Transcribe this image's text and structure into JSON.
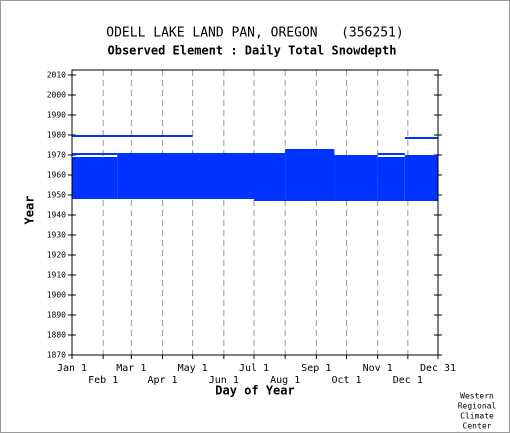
{
  "chart_data": {
    "type": "range",
    "title": "ODELL LAKE LAND PAN, OREGON   (356251)",
    "subtitle": "Observed Element : Daily Total Snowdepth",
    "xlabel": "Day of Year",
    "ylabel": "Year",
    "credit": [
      "Western",
      "Regional",
      "Climate",
      "Center"
    ],
    "color": "#0033ff",
    "xlim": [
      1,
      365
    ],
    "ylim": [
      1870,
      2012.5
    ],
    "xticks": [
      {
        "value": 1,
        "label": "Jan 1"
      },
      {
        "value": 32,
        "label": "Feb 1"
      },
      {
        "value": 60,
        "label": "Mar 1"
      },
      {
        "value": 91,
        "label": "Apr 1"
      },
      {
        "value": 121,
        "label": "May 1"
      },
      {
        "value": 152,
        "label": "Jun 1"
      },
      {
        "value": 182,
        "label": "Jul 1"
      },
      {
        "value": 213,
        "label": "Aug 1"
      },
      {
        "value": 244,
        "label": "Sep 1"
      },
      {
        "value": 274,
        "label": "Oct 1"
      },
      {
        "value": 305,
        "label": "Nov 1"
      },
      {
        "value": 335,
        "label": "Dec 1"
      },
      {
        "value": 365,
        "label": "Dec 31"
      }
    ],
    "yticks": [
      1870,
      1880,
      1890,
      1900,
      1910,
      1920,
      1930,
      1940,
      1950,
      1960,
      1970,
      1980,
      1990,
      2000,
      2010
    ],
    "grid": true,
    "ranges": [
      {
        "start": 1,
        "end": 121,
        "from": 1979,
        "to": 1980
      },
      {
        "start": 1,
        "end": 46,
        "from": 1970,
        "to": 1971
      },
      {
        "start": 1,
        "end": 46,
        "from": 1948,
        "to": 1969
      },
      {
        "start": 46,
        "end": 182,
        "from": 1948,
        "to": 1971
      },
      {
        "start": 121,
        "end": 182,
        "from": 1970,
        "to": 1971
      },
      {
        "start": 182,
        "end": 213,
        "from": 1947,
        "to": 1971
      },
      {
        "start": 213,
        "end": 262,
        "from": 1947,
        "to": 1973
      },
      {
        "start": 262,
        "end": 305,
        "from": 1947,
        "to": 1970
      },
      {
        "start": 305,
        "end": 332,
        "from": 1947,
        "to": 1969
      },
      {
        "start": 305,
        "end": 332,
        "from": 1970,
        "to": 1971
      },
      {
        "start": 332,
        "end": 365,
        "from": 1947,
        "to": 1970
      },
      {
        "start": 332,
        "end": 365,
        "from": 1978,
        "to": 1979
      }
    ]
  }
}
